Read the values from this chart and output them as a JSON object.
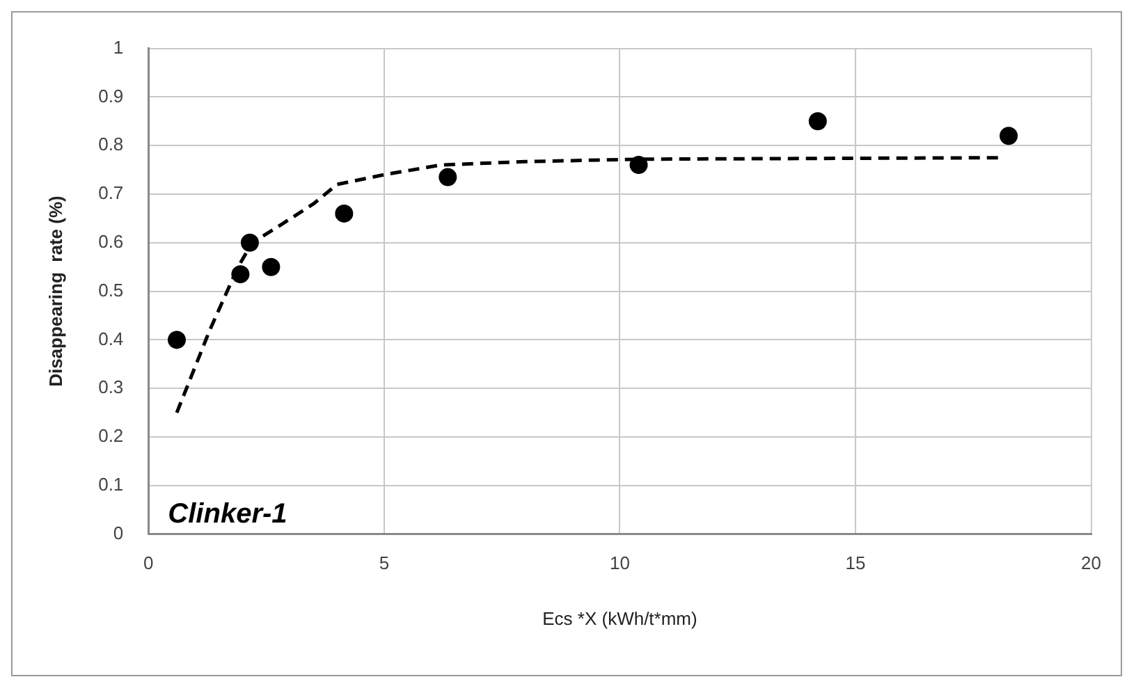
{
  "chart_data": {
    "type": "scatter",
    "xlabel": "Ecs *X (kWh/t*mm)",
    "ylabel": "Disappearing  rate (%)",
    "annotations": [
      "Clinker-1"
    ],
    "xlim": [
      0,
      20
    ],
    "xticks": [
      0,
      5,
      10,
      15,
      20
    ],
    "ylim": [
      0,
      1
    ],
    "yticks": [
      0,
      0.1,
      0.2,
      0.3,
      0.4,
      0.5,
      0.6,
      0.7,
      0.8,
      0.9,
      1
    ],
    "grid": true,
    "legend": false,
    "marker": "circle",
    "series": [
      {
        "color": "#000000",
        "x": [
          0.6,
          1.95,
          2.15,
          2.6,
          4.15,
          6.35,
          10.4,
          14.2,
          18.25
        ],
        "values": [
          0.4,
          0.535,
          0.6,
          0.55,
          0.66,
          0.735,
          0.76,
          0.85,
          0.82
        ]
      },
      {
        "type": "line",
        "line_style": "dashed",
        "marker": "none",
        "color": "#000000",
        "x": [
          0.6,
          1.3,
          1.9,
          2.2,
          2.7,
          3.5,
          4.0,
          5,
          6.2,
          8,
          10.5,
          18.1
        ],
        "values": [
          0.25,
          0.42,
          0.55,
          0.6,
          0.63,
          0.68,
          0.72,
          0.74,
          0.76,
          0.767,
          0.772,
          0.775
        ]
      }
    ]
  }
}
